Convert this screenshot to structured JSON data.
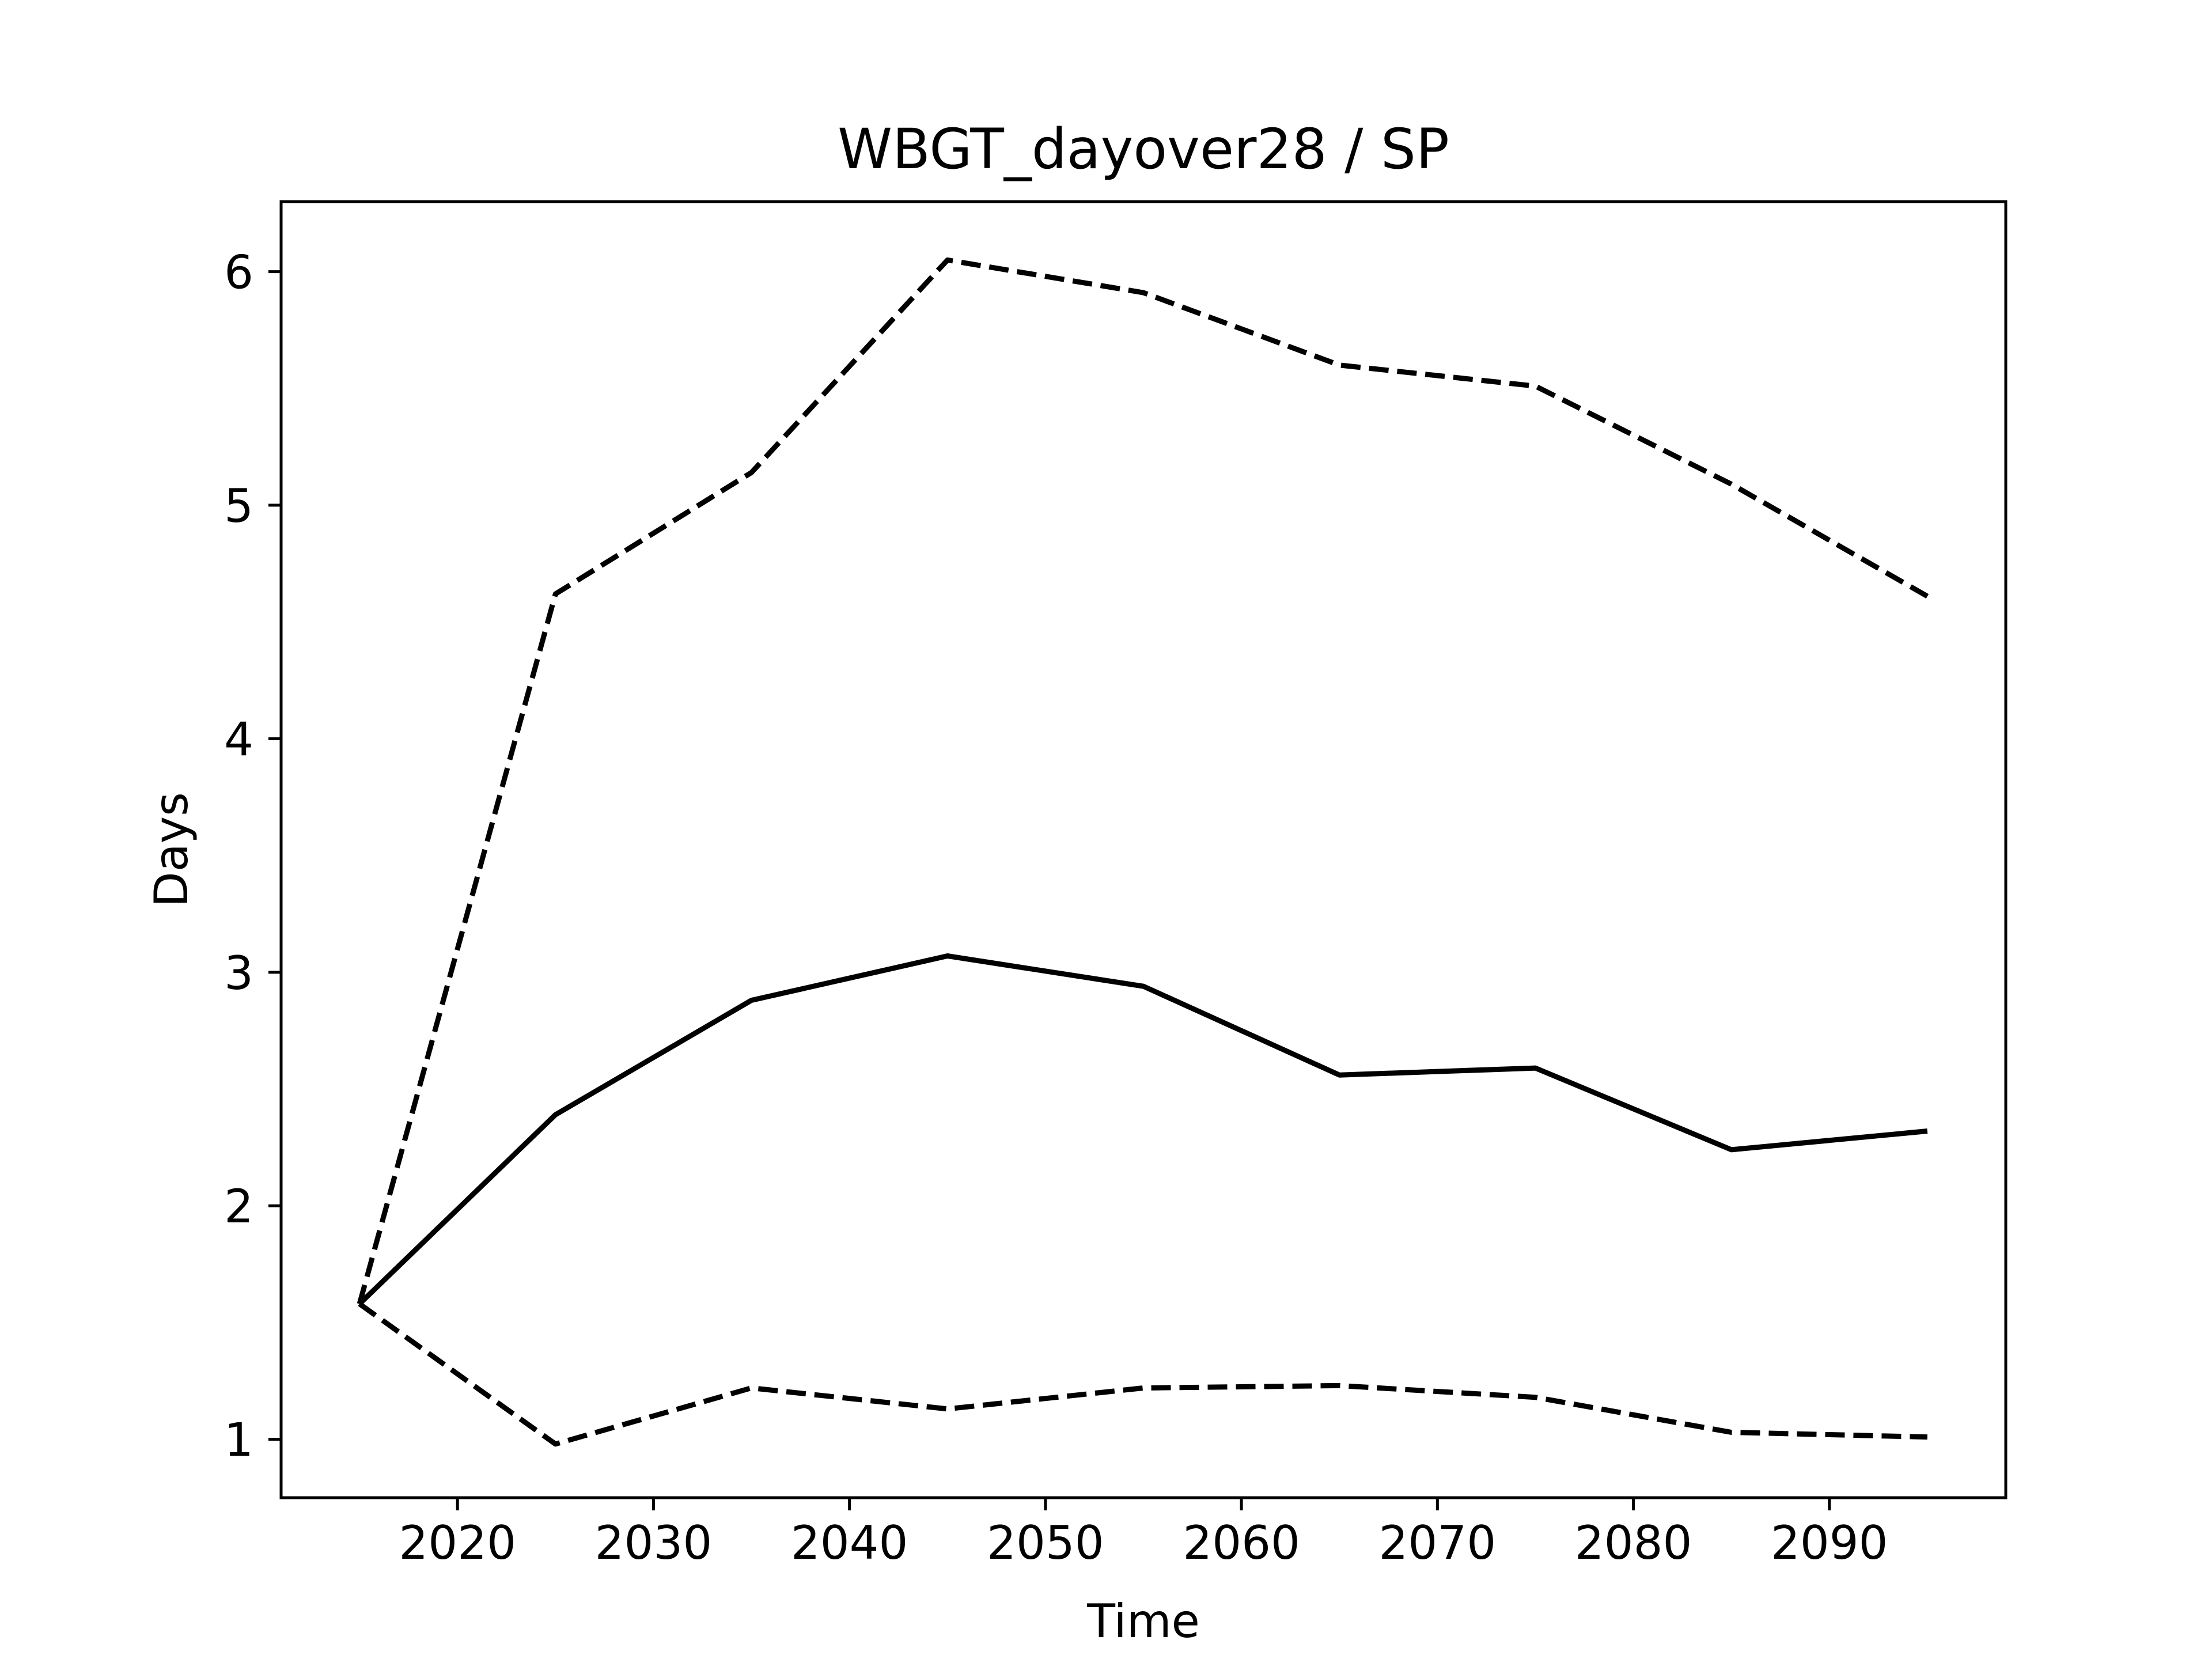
{
  "chart_data": {
    "type": "line",
    "title": "WBGT_dayover28 / SP",
    "xlabel": "Time",
    "ylabel": "Days",
    "xlim": [
      2011,
      2099
    ],
    "ylim": [
      0.75,
      6.3
    ],
    "x_ticks": [
      2020,
      2030,
      2040,
      2050,
      2060,
      2070,
      2080,
      2090
    ],
    "y_ticks": [
      1,
      2,
      3,
      4,
      5,
      6
    ],
    "x": [
      2015,
      2025,
      2035,
      2045,
      2055,
      2065,
      2075,
      2085,
      2095
    ],
    "grid": false,
    "legend": "none",
    "series": [
      {
        "style": "solid",
        "color": "#000000",
        "values": [
          1.58,
          2.39,
          2.88,
          3.07,
          2.94,
          2.56,
          2.59,
          2.24,
          2.32
        ]
      },
      {
        "style": "dashed",
        "color": "#000000",
        "values": [
          1.58,
          4.62,
          5.14,
          6.05,
          5.91,
          5.6,
          5.51,
          5.09,
          4.61
        ]
      },
      {
        "style": "dashed",
        "color": "#000000",
        "values": [
          1.58,
          0.98,
          1.22,
          1.13,
          1.22,
          1.23,
          1.18,
          1.03,
          1.01
        ]
      }
    ]
  }
}
